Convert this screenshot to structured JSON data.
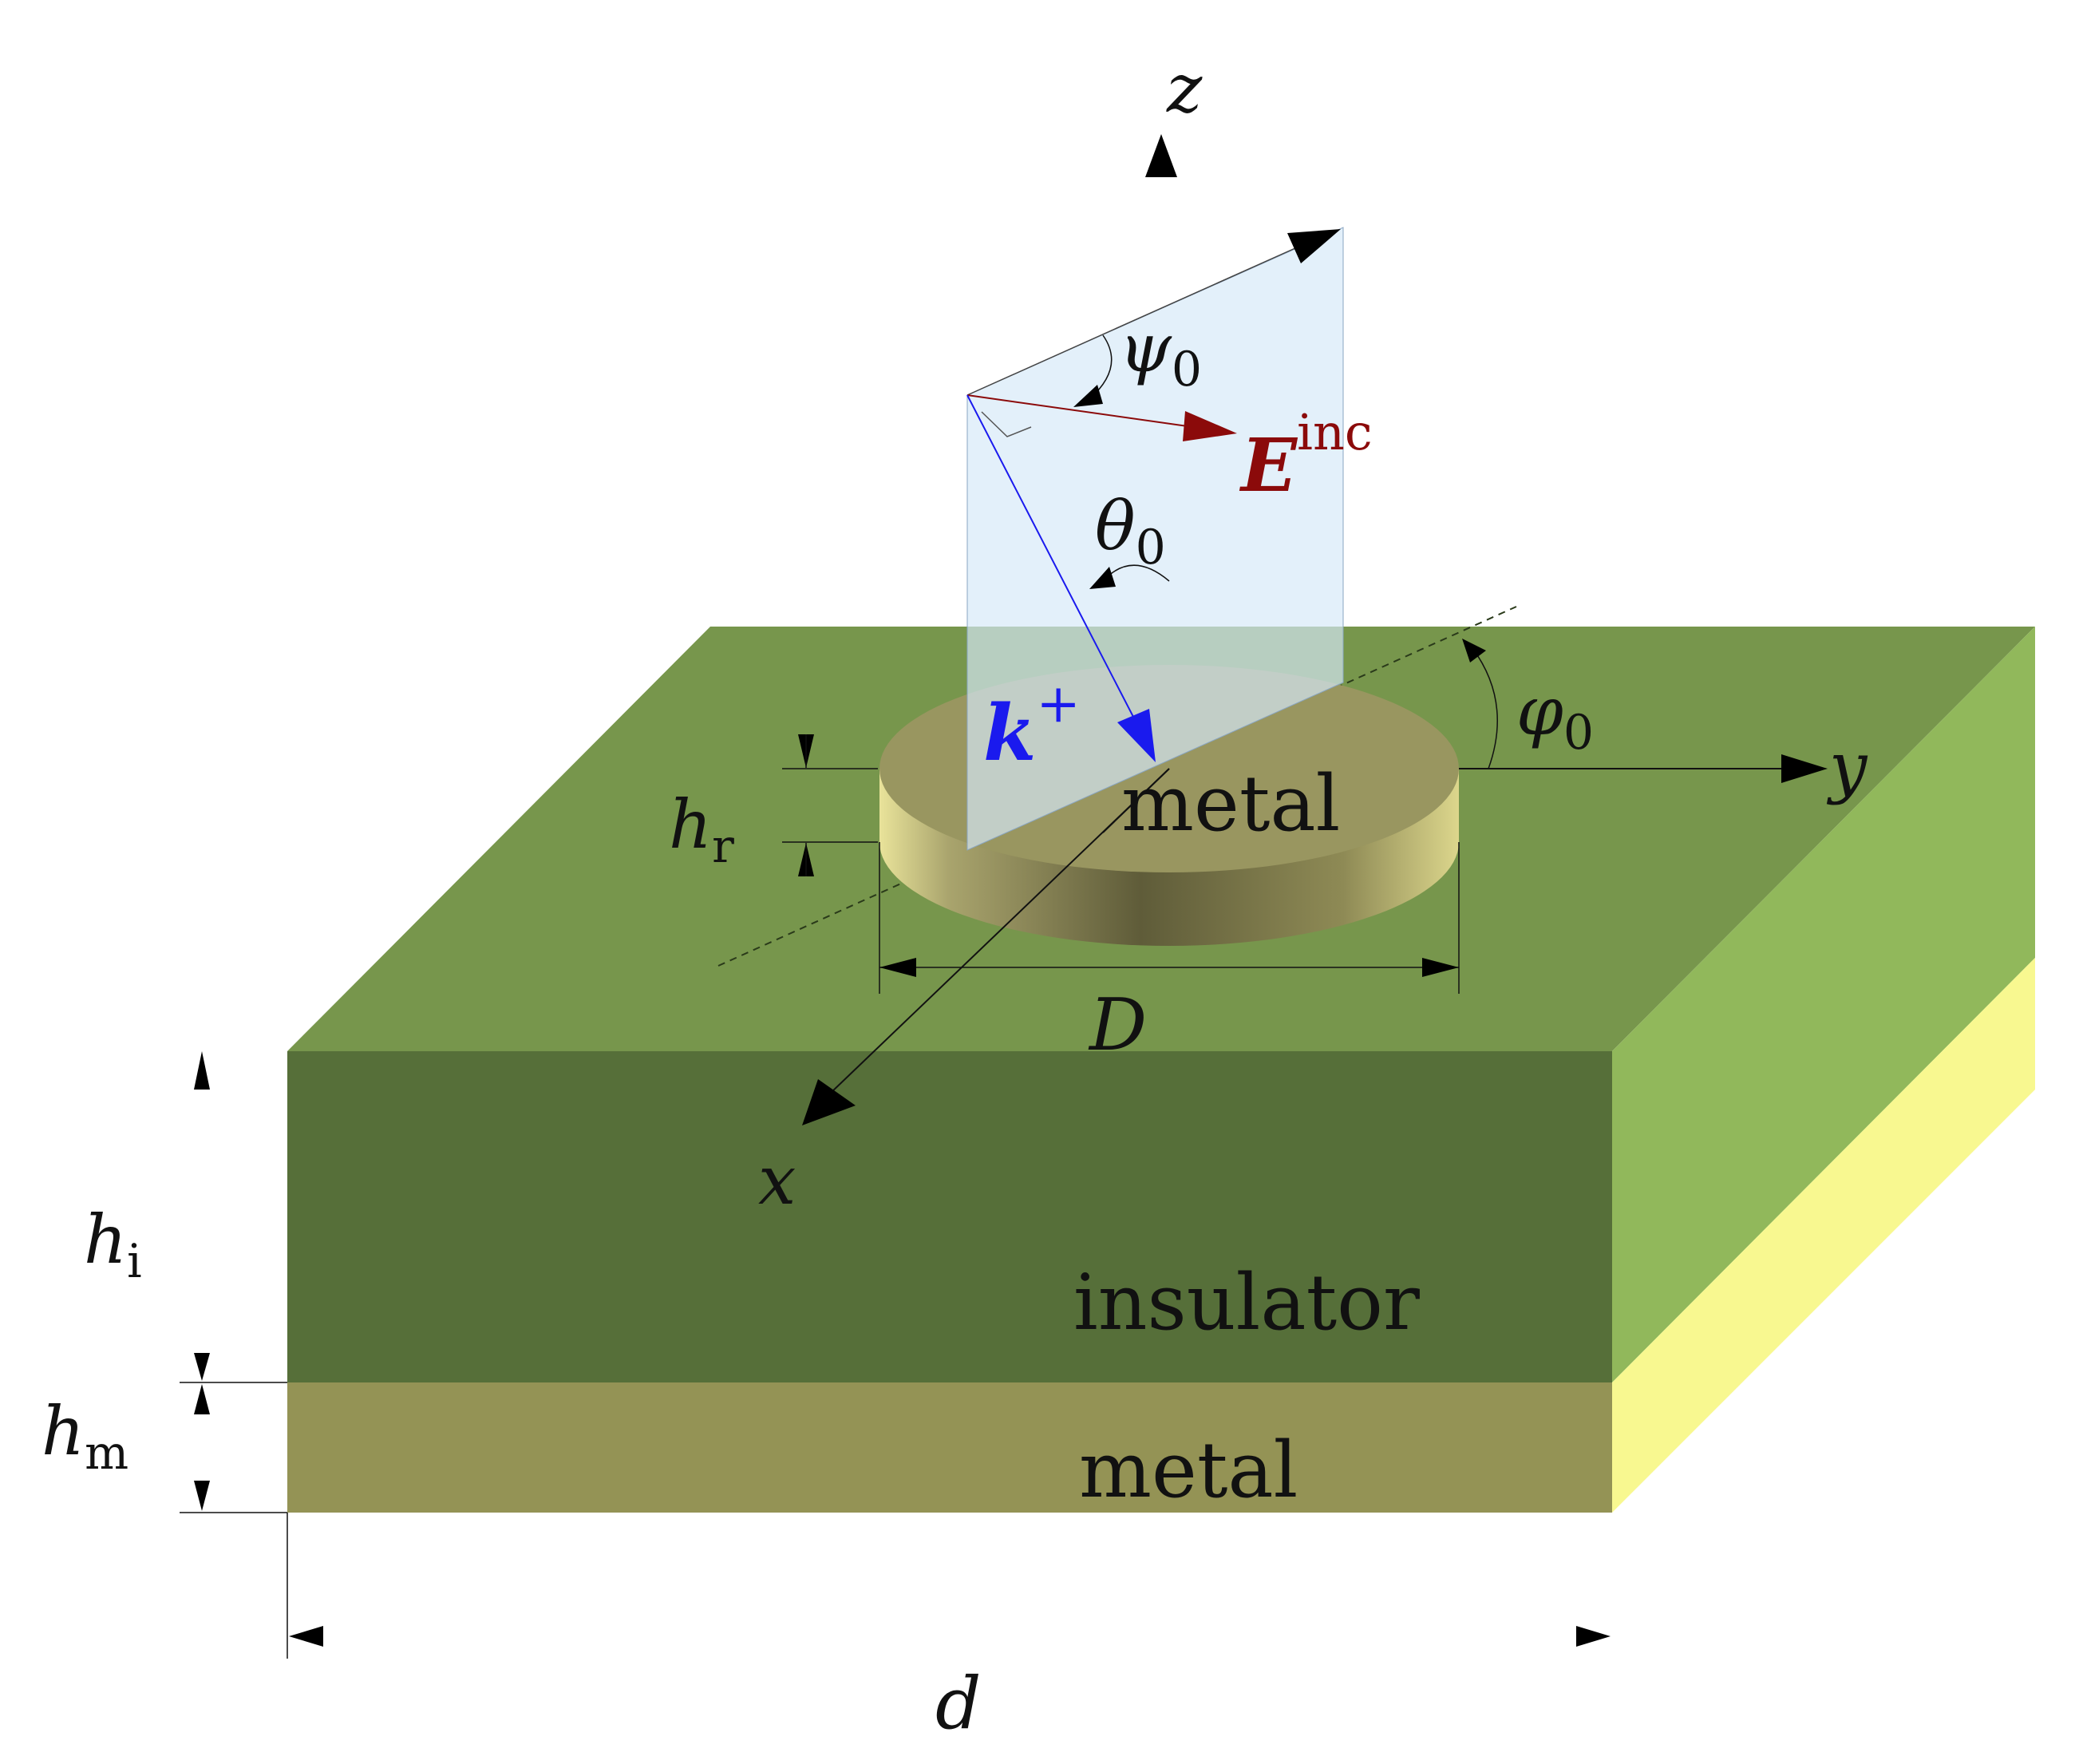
{
  "labels": {
    "axis_z": "z",
    "axis_y": "y",
    "axis_x": "x",
    "psi_sym": "ψ",
    "psi_sub": "0",
    "e_sym": "E",
    "e_sup": "inc",
    "theta_sym": "θ",
    "theta_sub": "0",
    "phi_sym": "φ",
    "phi_sub": "0",
    "k_sym": "k",
    "k_sup": "+",
    "hr_sym": "h",
    "hr_sub": "r",
    "hi_sym": "h",
    "hi_sub": "i",
    "hm_sym": "h",
    "hm_sub": "m",
    "disk_diameter": "D",
    "period": "d",
    "top_material": "metal",
    "middle_material": "insulator",
    "bottom_material": "metal"
  },
  "colors": {
    "slab_top": "#77964c",
    "insulator_front": "#566f39",
    "insulator_side": "#91b85b",
    "metal_front": "#949355",
    "metal_side": "#f8f890",
    "disk_top": "#999660",
    "plane": "#d6e9f7",
    "k_vector": "#1a1aee",
    "e_vector": "#8b0a0a"
  }
}
